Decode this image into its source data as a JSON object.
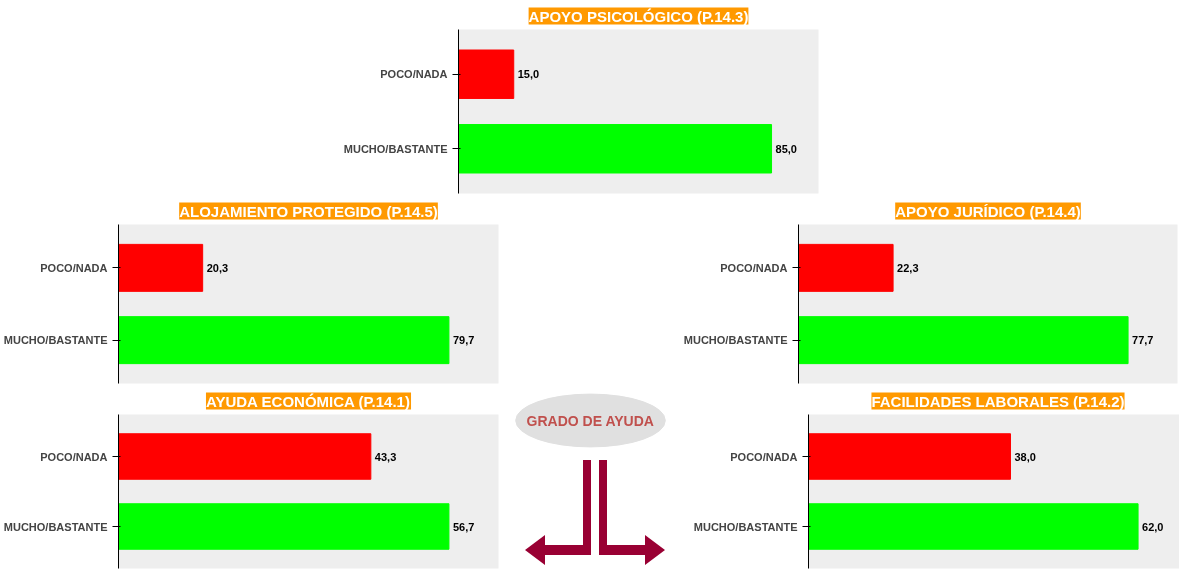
{
  "chart_data": [
    {
      "type": "bar",
      "orientation": "horizontal",
      "title": "APOYO PSICOLÓGICO (P.14.3)",
      "categories": [
        "POCO/NADA",
        "MUCHO/BASTANTE"
      ],
      "values": [
        15.0,
        85.0
      ],
      "value_labels": [
        "15,0",
        "85,0"
      ],
      "colors": [
        "#ff0000",
        "#00ff00"
      ],
      "tick_labels": "y",
      "grid": false
    },
    {
      "type": "other",
      "annotations": [
        "GRADO DE AYUDA"
      ]
    },
    {
      "type": "bar",
      "orientation": "horizontal",
      "title": "ALOJAMIENTO PROTEGIDO (P.14.5)",
      "categories": [
        "POCO/NADA",
        "MUCHO/BASTANTE"
      ],
      "values": [
        20.3,
        79.7
      ],
      "value_labels": [
        "20,3",
        "79,7"
      ],
      "colors": [
        "#ff0000",
        "#00ff00"
      ],
      "tick_labels": "y",
      "grid": false
    },
    {
      "type": "bar",
      "orientation": "horizontal",
      "title": "APOYO JURÍDICO (P.14.4)",
      "categories": [
        "POCO/NADA",
        "MUCHO/BASTANTE"
      ],
      "values": [
        22.3,
        77.7
      ],
      "value_labels": [
        "22,3",
        "77,7"
      ],
      "colors": [
        "#ff0000",
        "#00ff00"
      ],
      "tick_labels": "y",
      "grid": false
    },
    {
      "type": "bar",
      "orientation": "horizontal",
      "title": "AYUDA ECONÓMICA (P.14.1)",
      "categories": [
        "POCO/NADA",
        "MUCHO/BASTANTE"
      ],
      "values": [
        43.3,
        56.7
      ],
      "value_labels": [
        "43,3",
        "56,7"
      ],
      "colors": [
        "#ff0000",
        "#00ff00"
      ],
      "tick_labels": "y",
      "grid": false
    },
    {
      "type": "bar",
      "orientation": "horizontal",
      "title": "FACILIDADES LABORALES (P.14.2)",
      "categories": [
        "POCO/NADA",
        "MUCHO/BASTANTE"
      ],
      "values": [
        38.0,
        62.0
      ],
      "value_labels": [
        "38,0",
        "62,0"
      ],
      "colors": [
        "#ff0000",
        "#00ff00"
      ],
      "tick_labels": "y",
      "grid": false
    }
  ]
}
